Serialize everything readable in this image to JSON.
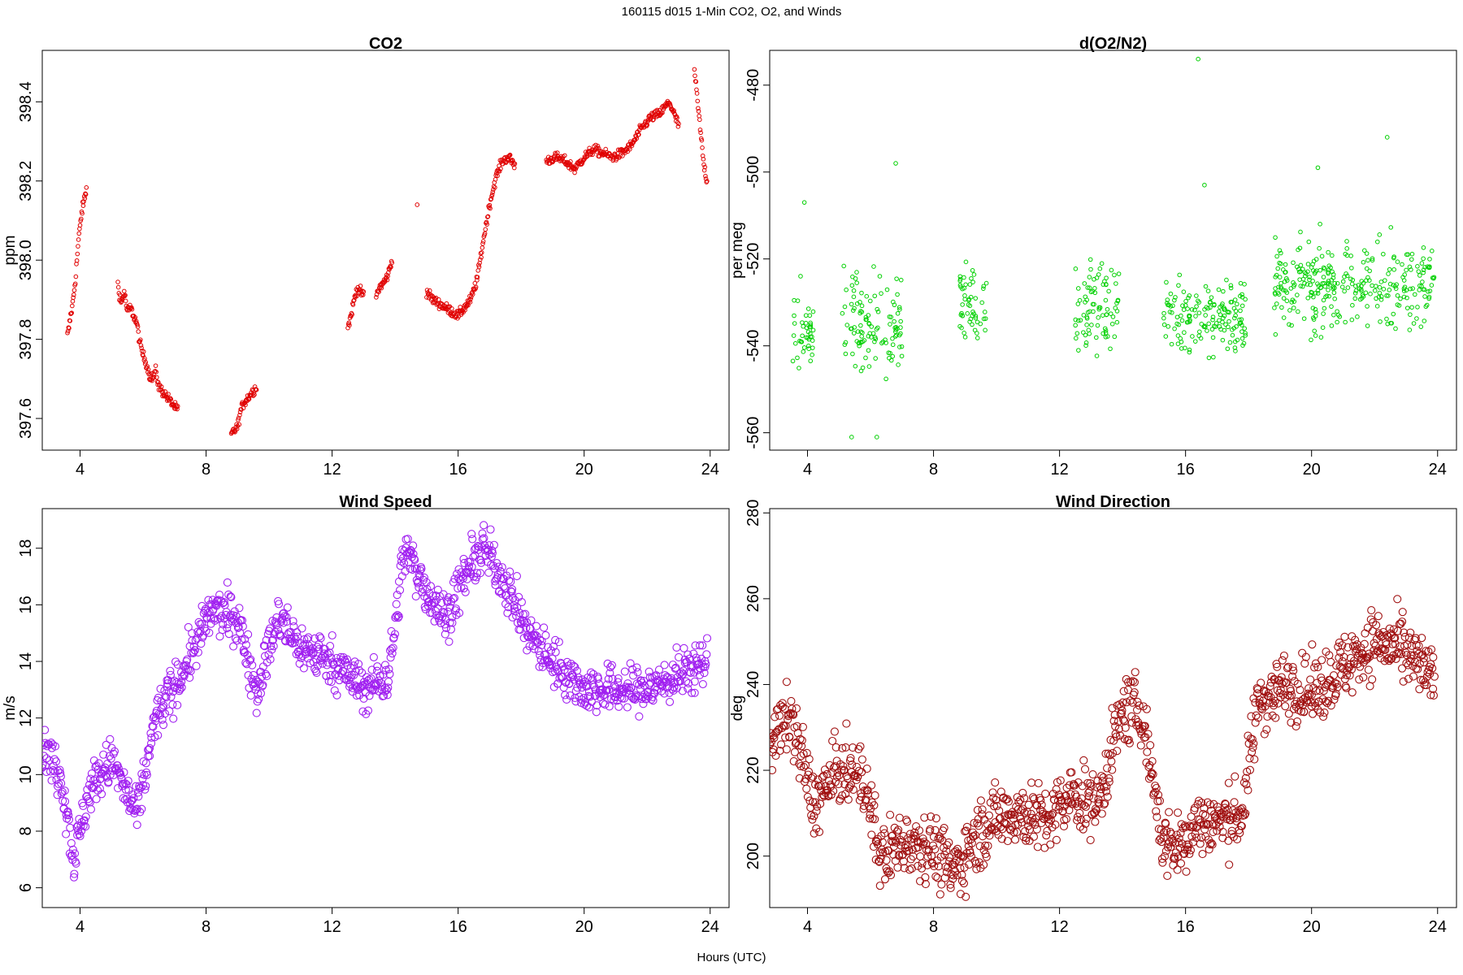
{
  "title": "160115   d015   1-Min CO2, O2, and Winds",
  "shared_xlabel": "Hours (UTC)",
  "chart_data": [
    {
      "type": "scatter",
      "title": "CO2",
      "xlabel": "",
      "ylabel": "ppm",
      "color": "#e00000",
      "marker_size": "small",
      "xlim": [
        2.8,
        24.6
      ],
      "ylim": [
        397.52,
        398.53
      ],
      "xticks": [
        4,
        8,
        12,
        16,
        20,
        24
      ],
      "yticks": [
        397.6,
        397.8,
        398.0,
        398.2,
        398.4
      ],
      "ytick_labels": [
        "397.6",
        "397.8",
        "398.0",
        "398.2",
        "398.4"
      ],
      "segments": [
        {
          "x": [
            3.6,
            3.65,
            3.7,
            3.75,
            3.85,
            3.95,
            4.05,
            4.15,
            4.2
          ],
          "y": [
            397.81,
            397.83,
            397.86,
            397.88,
            397.95,
            398.05,
            398.12,
            398.16,
            398.18
          ]
        },
        {
          "x": [
            5.2,
            5.3,
            5.4,
            5.5,
            5.6,
            5.7,
            5.8,
            5.9,
            6.0,
            6.1,
            6.2,
            6.3,
            6.4,
            6.5,
            6.6,
            6.7,
            6.8,
            6.9,
            7.0,
            7.1
          ],
          "y": [
            397.94,
            397.89,
            397.92,
            397.87,
            397.88,
            397.86,
            397.84,
            397.79,
            397.76,
            397.74,
            397.71,
            397.7,
            397.72,
            397.68,
            397.67,
            397.66,
            397.65,
            397.64,
            397.63,
            397.62
          ]
        },
        {
          "x": [
            8.8,
            8.9,
            9.0,
            9.1,
            9.2,
            9.3,
            9.4,
            9.5,
            9.6
          ],
          "y": [
            397.56,
            397.57,
            397.58,
            397.62,
            397.64,
            397.65,
            397.66,
            397.67,
            397.68
          ]
        },
        {
          "x": [
            12.5,
            12.6,
            12.7,
            12.8,
            12.9,
            13.0
          ],
          "y": [
            397.83,
            397.86,
            397.9,
            397.93,
            397.92,
            397.91
          ]
        },
        {
          "x": [
            13.4,
            13.5,
            13.6,
            13.7,
            13.8,
            13.9
          ],
          "y": [
            397.91,
            397.93,
            397.94,
            397.95,
            397.97,
            398.0
          ]
        },
        {
          "x": [
            14.7
          ],
          "y": [
            398.14
          ]
        },
        {
          "x": [
            15.0,
            15.2,
            15.4,
            15.6,
            15.8,
            16.0,
            16.2,
            16.4,
            16.6,
            16.8,
            17.0,
            17.2,
            17.4,
            17.6,
            17.8
          ],
          "y": [
            397.92,
            397.9,
            397.89,
            397.88,
            397.87,
            397.86,
            397.88,
            397.9,
            397.95,
            398.05,
            398.14,
            398.21,
            398.25,
            398.26,
            398.24
          ]
        },
        {
          "x": [
            18.8,
            19.1,
            19.4,
            19.7,
            20.0,
            20.3,
            20.6,
            20.9,
            21.2,
            21.5,
            21.8,
            22.1,
            22.4,
            22.7,
            23.0
          ],
          "y": [
            398.25,
            398.26,
            398.25,
            398.23,
            398.26,
            398.28,
            398.27,
            398.26,
            398.27,
            398.29,
            398.33,
            398.36,
            398.37,
            398.4,
            398.34
          ]
        },
        {
          "x": [
            23.5,
            23.6,
            23.7,
            23.8,
            23.9
          ],
          "y": [
            398.48,
            398.4,
            398.32,
            398.24,
            398.2
          ]
        }
      ]
    },
    {
      "type": "scatter",
      "title": "d(O2/N2)",
      "xlabel": "",
      "ylabel": "per meg",
      "color": "#00d000",
      "marker_size": "small",
      "xlim": [
        2.8,
        24.6
      ],
      "ylim": [
        -564,
        -472
      ],
      "xticks": [
        4,
        8,
        12,
        16,
        20,
        24
      ],
      "yticks": [
        -560,
        -540,
        -520,
        -500,
        -480
      ],
      "ytick_labels": [
        "-560",
        "-540",
        "-520",
        "-500",
        "-480"
      ],
      "clusters": [
        {
          "x_from": 3.5,
          "x_to": 4.2,
          "center": -536,
          "spread": 8
        },
        {
          "x_from": 5.1,
          "x_to": 7.0,
          "center": -535,
          "spread": 9
        },
        {
          "x_from": 8.8,
          "x_to": 9.7,
          "center": -530,
          "spread": 7
        },
        {
          "x_from": 12.5,
          "x_to": 13.9,
          "center": -531,
          "spread": 8
        },
        {
          "x_from": 15.3,
          "x_to": 17.9,
          "center": -533,
          "spread": 8
        },
        {
          "x_from": 18.8,
          "x_to": 23.9,
          "center": -526,
          "spread": 8
        }
      ],
      "outliers": [
        {
          "x": 16.4,
          "y": -474
        },
        {
          "x": 22.4,
          "y": -492
        },
        {
          "x": 6.8,
          "y": -498
        },
        {
          "x": 5.4,
          "y": -561
        },
        {
          "x": 6.2,
          "y": -561
        },
        {
          "x": 3.9,
          "y": -507
        },
        {
          "x": 20.2,
          "y": -499
        },
        {
          "x": 16.6,
          "y": -503
        }
      ]
    },
    {
      "type": "scatter",
      "title": "Wind Speed",
      "xlabel": "",
      "ylabel": "m/s",
      "color": "#a020f0",
      "marker_size": "large",
      "xlim": [
        2.8,
        24.6
      ],
      "ylim": [
        5.3,
        19.4
      ],
      "xticks": [
        4,
        8,
        12,
        16,
        20,
        24
      ],
      "yticks": [
        6,
        8,
        10,
        12,
        14,
        16,
        18
      ],
      "ytick_labels": [
        "6",
        "8",
        "10",
        "12",
        "14",
        "16",
        "18"
      ],
      "trend": {
        "x": [
          2.8,
          3.4,
          3.8,
          4.3,
          5.0,
          5.8,
          6.4,
          7.2,
          8.2,
          9.0,
          9.6,
          10.3,
          11.0,
          12.0,
          13.0,
          13.8,
          14.3,
          15.0,
          15.6,
          16.2,
          16.8,
          17.4,
          18.2,
          19.0,
          20.0,
          21.0,
          22.0,
          23.0,
          23.9
        ],
        "y": [
          11.0,
          10.0,
          7.0,
          9.5,
          10.5,
          8.5,
          12.0,
          13.5,
          15.8,
          15.5,
          13.0,
          15.5,
          14.5,
          14.0,
          13.0,
          13.5,
          18.0,
          16.5,
          15.5,
          17.0,
          18.0,
          17.0,
          15.0,
          14.0,
          13.0,
          13.0,
          13.0,
          13.5,
          14.0
        ]
      },
      "spread": 0.75
    },
    {
      "type": "scatter",
      "title": "Wind Direction",
      "xlabel": "",
      "ylabel": "deg",
      "color": "#a01010",
      "marker_size": "large",
      "xlim": [
        2.8,
        24.6
      ],
      "ylim": [
        188,
        281
      ],
      "xticks": [
        4,
        8,
        12,
        16,
        20,
        24
      ],
      "yticks": [
        200,
        220,
        240,
        260,
        280
      ],
      "ytick_labels": [
        "200",
        "220",
        "240",
        "260",
        "280"
      ],
      "trend": {
        "x": [
          2.8,
          3.5,
          4.2,
          5.0,
          5.8,
          6.3,
          7.2,
          8.0,
          8.6,
          9.4,
          10.2,
          10.9,
          11.6,
          12.4,
          13.2,
          14.0,
          14.6,
          15.3,
          15.8,
          16.4,
          17.2,
          17.8,
          18.3,
          19.2,
          20.0,
          21.0,
          22.0,
          22.8,
          23.5,
          23.9
        ],
        "y": [
          228,
          232,
          212,
          220,
          218,
          200,
          204,
          202,
          196,
          205,
          210,
          210,
          208,
          214,
          212,
          234,
          234,
          203,
          202,
          208,
          208,
          210,
          236,
          240,
          238,
          244,
          250,
          248,
          244,
          240
        ]
      },
      "spread": 7
    }
  ]
}
